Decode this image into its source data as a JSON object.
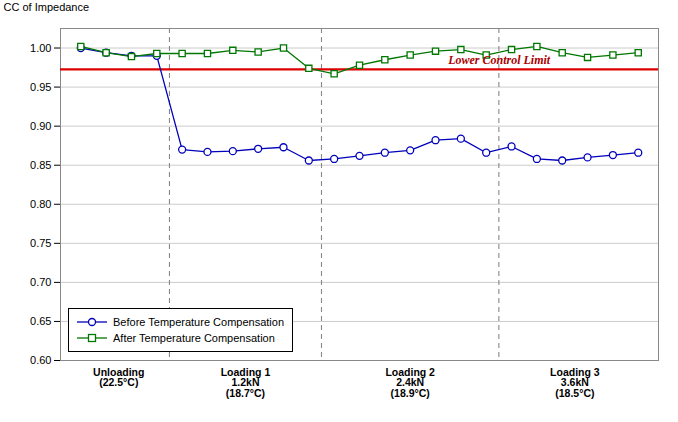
{
  "chart_data": {
    "type": "line",
    "x": [
      0,
      1,
      2,
      3,
      4,
      5,
      6,
      7,
      8,
      9,
      10,
      11,
      12,
      13,
      14,
      15,
      16,
      17,
      18,
      19,
      20,
      21,
      22
    ],
    "xlim": [
      -0.8,
      22.8
    ],
    "series": [
      {
        "name": "Before Temperature Compensation",
        "color": "#0000BB",
        "marker": "circle",
        "values": [
          1.0,
          0.994,
          0.99,
          0.99,
          0.87,
          0.867,
          0.868,
          0.871,
          0.873,
          0.856,
          0.858,
          0.862,
          0.866,
          0.869,
          0.882,
          0.884,
          0.866,
          0.874,
          0.858,
          0.856,
          0.86,
          0.863,
          0.866
        ]
      },
      {
        "name": "After Temperature Compensation",
        "color": "#007700",
        "marker": "square",
        "values": [
          1.002,
          0.994,
          0.989,
          0.993,
          0.993,
          0.993,
          0.997,
          0.995,
          1.0,
          0.974,
          0.967,
          0.978,
          0.985,
          0.991,
          0.996,
          0.998,
          0.991,
          0.998,
          1.002,
          0.994,
          0.988,
          0.991,
          0.994
        ]
      }
    ],
    "ylabel": "CC of Impedance",
    "ylim": [
      0.6,
      1.025
    ],
    "yticks": [
      {
        "value": 0.6,
        "label": "0.60"
      },
      {
        "value": 0.65,
        "label": "0.65"
      },
      {
        "value": 0.7,
        "label": "0.70"
      },
      {
        "value": 0.75,
        "label": "0.75"
      },
      {
        "value": 0.8,
        "label": "0.80"
      },
      {
        "value": 0.85,
        "label": "0.85"
      },
      {
        "value": 0.9,
        "label": "0.90"
      },
      {
        "value": 0.95,
        "label": "0.95"
      },
      {
        "value": 1.0,
        "label": "1.00"
      }
    ],
    "grid": "y",
    "tick_labels": "y",
    "legend": "lower left",
    "hline": {
      "y": 0.9726,
      "color": "#DD0000",
      "label": "Lower Control Limit",
      "label_color": "#AA0000",
      "label_x": 14.5
    },
    "section_boundaries": [
      3.5,
      9.5,
      16.5
    ],
    "sections": [
      {
        "x": 1.5,
        "text": "Unloading\n(22.5°C)"
      },
      {
        "x": 6.5,
        "text": "Loading 1\n1.2kN\n(18.7°C)"
      },
      {
        "x": 13.0,
        "text": "Loading 2\n2.4kN\n(18.9°C)"
      },
      {
        "x": 19.5,
        "text": "Loading 3\n3.6kN\n(18.5°C)"
      }
    ]
  }
}
